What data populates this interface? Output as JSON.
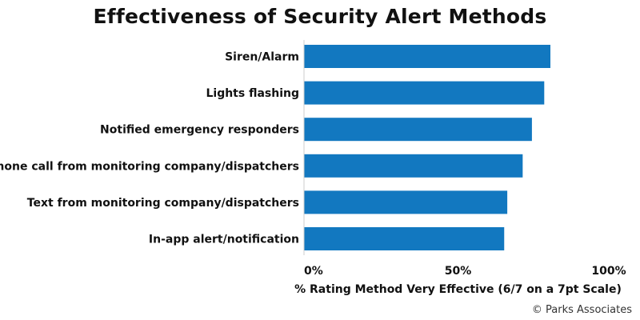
{
  "chart_data": {
    "type": "bar",
    "orientation": "horizontal",
    "title": "Effectiveness of Security Alert Methods",
    "categories": [
      "Siren/Alarm",
      "Lights flashing",
      "Notified emergency responders",
      "Phone call from monitoring company/dispatchers",
      "Text from monitoring company/dispatchers",
      "In-app alert/notification"
    ],
    "values": [
      80,
      78,
      74,
      71,
      66,
      65
    ],
    "xlabel": "% Rating Method Very Effective (6/7 on a 7pt Scale)",
    "ylabel": "",
    "xlim": [
      0,
      100
    ],
    "x_ticks": [
      "0%",
      "50%",
      "100%"
    ],
    "x_tick_values": [
      0,
      50,
      100
    ],
    "grid": false,
    "bar_color": "#1278C0"
  },
  "source": "© Parks Associates"
}
